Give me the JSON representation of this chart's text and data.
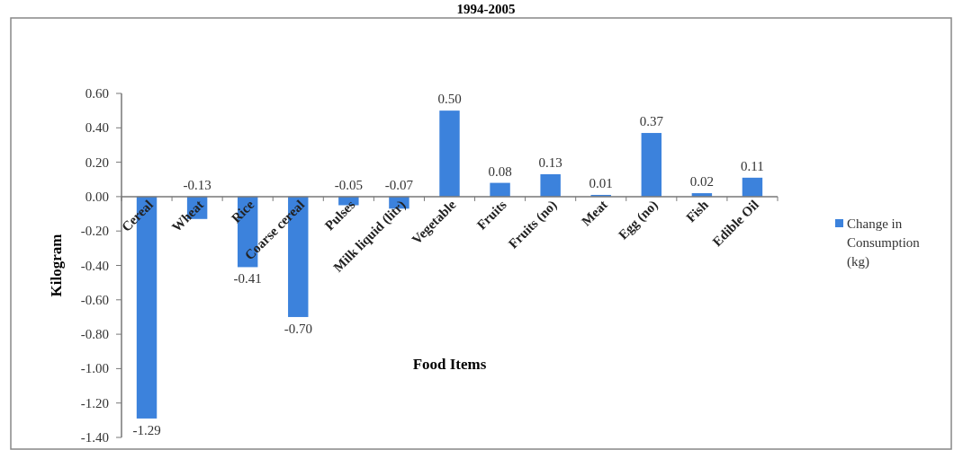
{
  "chart_data": {
    "type": "bar",
    "title": "1994-2005",
    "xlabel": "Food Items",
    "ylabel": "Kilogram",
    "categories": [
      "Cereal",
      "Wheat",
      "Rice",
      "Coarse cereal",
      "Pulses",
      "Milk liquid (litr)",
      "Vegetable",
      "Fruits",
      "Fruits (no)",
      "Meat",
      "Egg (no)",
      "Fish",
      "Edible Oil"
    ],
    "series": [
      {
        "name": "Change in Consumption (kg)",
        "color": "#3c82dc",
        "values": [
          -1.29,
          -0.13,
          -0.41,
          -0.7,
          -0.05,
          -0.07,
          0.5,
          0.08,
          0.13,
          0.01,
          0.37,
          0.02,
          0.11
        ],
        "value_labels": [
          "-1.29",
          "-0.13",
          "-0.41",
          "-0.70",
          "-0.05",
          "-0.07",
          "0.50",
          "0.08",
          "0.13",
          "0.01",
          "0.37",
          "0.02",
          "0.11"
        ]
      }
    ],
    "ylim": [
      -1.4,
      0.6
    ],
    "yticks": [
      {
        "value": -1.4,
        "label": "-1.40"
      },
      {
        "value": -1.2,
        "label": "-1.20"
      },
      {
        "value": -1,
        "label": "-1.00"
      },
      {
        "value": -0.8,
        "label": "-0.80"
      },
      {
        "value": -0.6,
        "label": "-0.60"
      },
      {
        "value": -0.4,
        "label": "-0.40"
      },
      {
        "value": -0.2,
        "label": "-0.20"
      },
      {
        "value": 0,
        "label": "0.00"
      },
      {
        "value": 0.2,
        "label": "0.20"
      },
      {
        "value": 0.4,
        "label": "0.40"
      },
      {
        "value": 0.6,
        "label": "0.60"
      }
    ],
    "legend": "right",
    "grid": false
  }
}
